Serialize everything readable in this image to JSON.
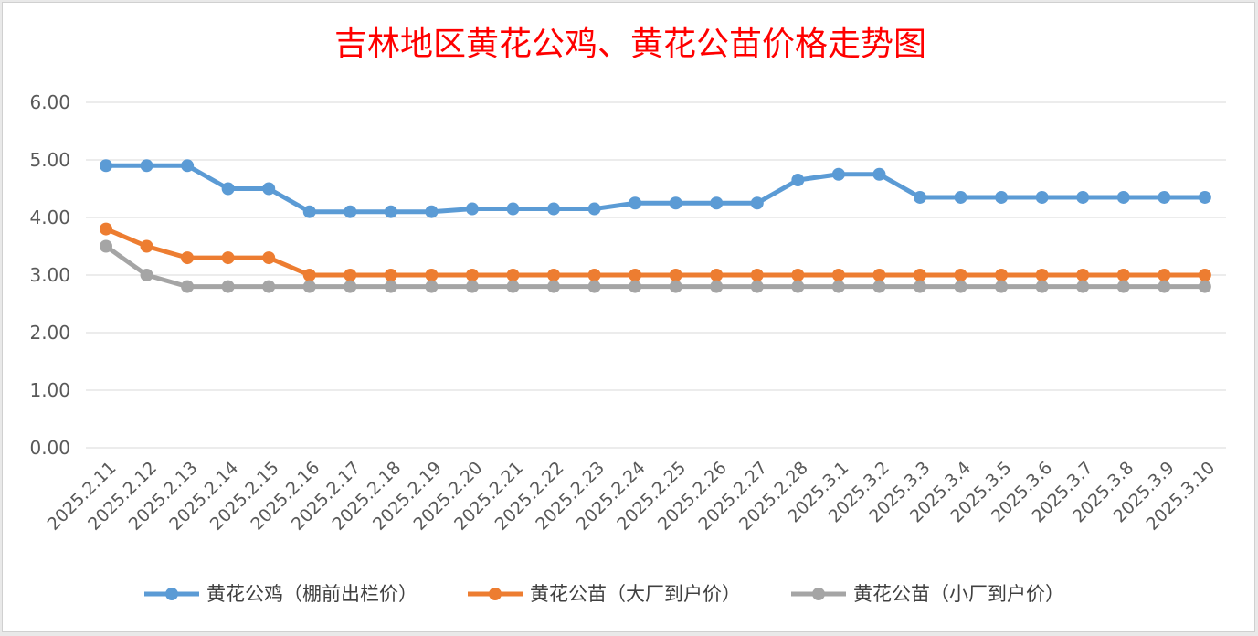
{
  "chart_data": {
    "type": "line",
    "title": "吉林地区黄花公鸡、黄花公苗价格走势图",
    "xlabel": "",
    "ylabel": "",
    "ylim": [
      0,
      6
    ],
    "yticks": [
      "0.00",
      "1.00",
      "2.00",
      "3.00",
      "4.00",
      "5.00",
      "6.00"
    ],
    "grid": true,
    "legend_position": "bottom",
    "categories": [
      "2025.2.11",
      "2025.2.12",
      "2025.2.13",
      "2025.2.14",
      "2025.2.15",
      "2025.2.16",
      "2025.2.17",
      "2025.2.18",
      "2025.2.19",
      "2025.2.20",
      "2025.2.21",
      "2025.2.22",
      "2025.2.23",
      "2025.2.24",
      "2025.2.25",
      "2025.2.26",
      "2025.2.27",
      "2025.2.28",
      "2025.3.1",
      "2025.3.2",
      "2025.3.3",
      "2025.3.4",
      "2025.3.5",
      "2025.3.6",
      "2025.3.7",
      "2025.3.8",
      "2025.3.9",
      "2025.3.10"
    ],
    "series": [
      {
        "name": "黄花公鸡（棚前出栏价）",
        "color": "#5b9bd5",
        "values": [
          4.9,
          4.9,
          4.9,
          4.5,
          4.5,
          4.1,
          4.1,
          4.1,
          4.1,
          4.15,
          4.15,
          4.15,
          4.15,
          4.25,
          4.25,
          4.25,
          4.25,
          4.65,
          4.75,
          4.75,
          4.35,
          4.35,
          4.35,
          4.35,
          4.35,
          4.35,
          4.35,
          4.35
        ]
      },
      {
        "name": "黄花公苗（大厂到户价）",
        "color": "#ed7d31",
        "values": [
          3.8,
          3.5,
          3.3,
          3.3,
          3.3,
          3.0,
          3.0,
          3.0,
          3.0,
          3.0,
          3.0,
          3.0,
          3.0,
          3.0,
          3.0,
          3.0,
          3.0,
          3.0,
          3.0,
          3.0,
          3.0,
          3.0,
          3.0,
          3.0,
          3.0,
          3.0,
          3.0,
          3.0
        ]
      },
      {
        "name": "黄花公苗（小厂到户价）",
        "color": "#a5a5a5",
        "values": [
          3.5,
          3.0,
          2.8,
          2.8,
          2.8,
          2.8,
          2.8,
          2.8,
          2.8,
          2.8,
          2.8,
          2.8,
          2.8,
          2.8,
          2.8,
          2.8,
          2.8,
          2.8,
          2.8,
          2.8,
          2.8,
          2.8,
          2.8,
          2.8,
          2.8,
          2.8,
          2.8,
          2.8
        ]
      }
    ]
  }
}
